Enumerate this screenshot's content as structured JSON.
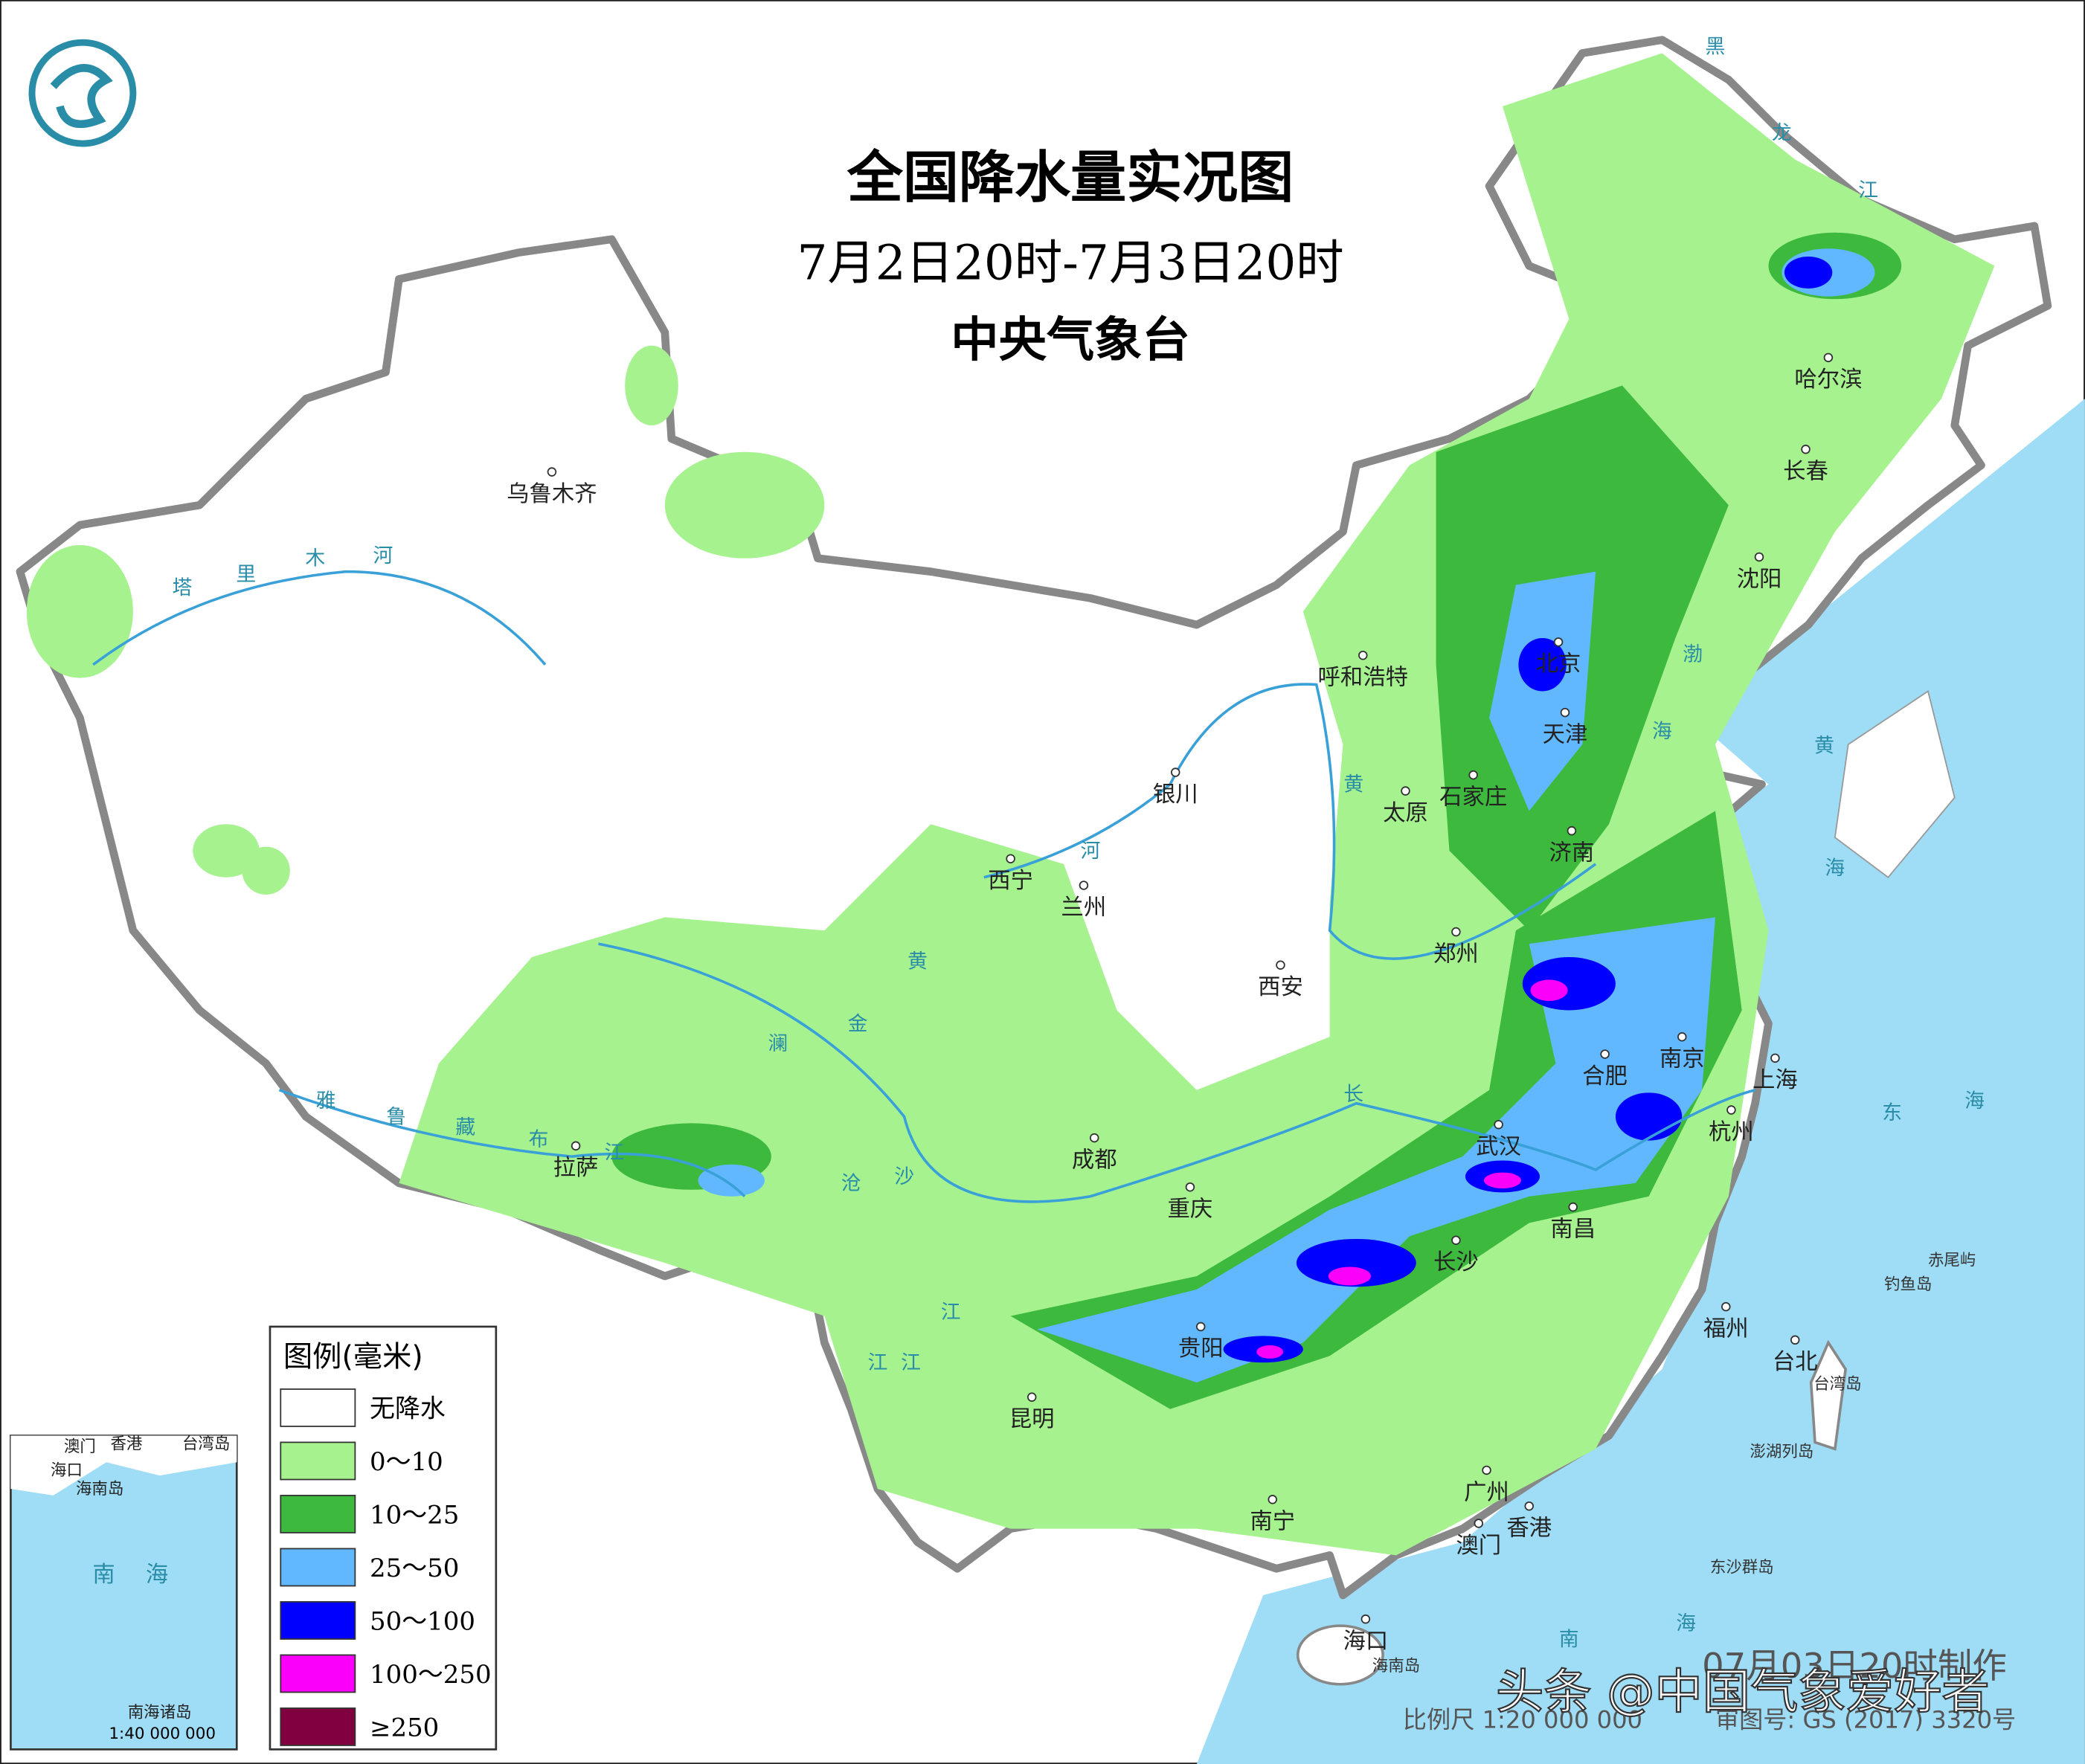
{
  "header": {
    "title": "全国降水量实况图",
    "subtitle": "7月2日20时-7月3日20时",
    "agency": "中央气象台"
  },
  "cities": [
    "乌鲁木齐",
    "哈尔滨",
    "长春",
    "沈阳",
    "呼和浩特",
    "北京",
    "天津",
    "石家庄",
    "太原",
    "银川",
    "济南",
    "西宁",
    "兰州",
    "郑州",
    "西安",
    "合肥",
    "南京",
    "上海",
    "杭州",
    "武汉",
    "成都",
    "拉萨",
    "重庆",
    "长沙",
    "南昌",
    "贵阳",
    "福州",
    "台北",
    "昆明",
    "南宁",
    "广州",
    "香港",
    "澳门",
    "海口"
  ],
  "water_labels": [
    "塔",
    "里",
    "木",
    "河",
    "黄",
    "河",
    "黄",
    "长",
    "江",
    "雅",
    "鲁",
    "藏",
    "布",
    "江",
    "澜",
    "沧",
    "江",
    "金",
    "沙",
    "江",
    "渤",
    "海",
    "黄",
    "海",
    "东",
    "海",
    "南",
    "海",
    "黑",
    "龙",
    "江"
  ],
  "islands": [
    "赤尾屿",
    "钓鱼岛",
    "台湾岛",
    "澎湖列岛",
    "东沙群岛",
    "海南岛"
  ],
  "legend": {
    "title": "图例(毫米)",
    "items": [
      {
        "label": "无降水",
        "color": "#ffffff"
      },
      {
        "label": "0～10",
        "color": "#a6f28f"
      },
      {
        "label": "10～25",
        "color": "#3dba3d"
      },
      {
        "label": "25～50",
        "color": "#61b8ff"
      },
      {
        "label": "50～100",
        "color": "#0000fe"
      },
      {
        "label": "100～250",
        "color": "#fa00fa"
      },
      {
        "label": "≥250",
        "color": "#800040"
      }
    ]
  },
  "inset": {
    "labels": [
      "澳门",
      "香港",
      "台湾岛",
      "海口",
      "海南岛",
      "南",
      "海",
      "南海诸岛"
    ],
    "scale": "1:40 000 000"
  },
  "footer": {
    "scale": "比例尺 1:20 000 000",
    "map_number": "审图号: GS (2017) 3320号",
    "made": "07月03日20时制作",
    "watermark": "头条 @中国气象爱好者"
  }
}
